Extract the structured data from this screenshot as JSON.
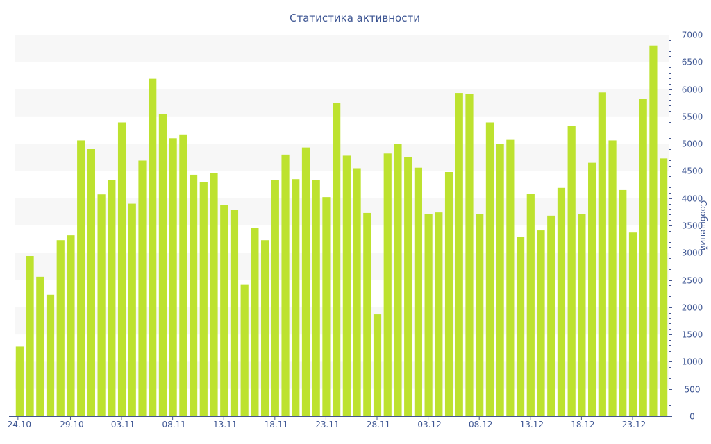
{
  "chart_data": {
    "type": "bar",
    "title": "Статистика активности",
    "xlabel": "",
    "ylabel": "Сообщений",
    "ylim": [
      0,
      7000
    ],
    "y_ticks": [
      0,
      500,
      1000,
      1500,
      2000,
      2500,
      3000,
      3500,
      4000,
      4500,
      5000,
      5500,
      6000,
      6500,
      7000
    ],
    "x_tick_labels": [
      "24.10",
      "29.10",
      "03.11",
      "08.11",
      "13.11",
      "18.11",
      "23.11",
      "28.11",
      "03.12",
      "08.12",
      "13.12",
      "18.12",
      "23.12"
    ],
    "x_tick_every": 5,
    "grid": "alternating horizontal bands",
    "y_axis_position": "right",
    "bar_color": "#bde22f",
    "band_color": "#f7f7f7",
    "axis_color": "#44578f",
    "text_color": "#3e5693",
    "categories": [
      "24.10",
      "25.10",
      "26.10",
      "27.10",
      "28.10",
      "29.10",
      "30.10",
      "31.10",
      "01.11",
      "02.11",
      "03.11",
      "04.11",
      "05.11",
      "06.11",
      "07.11",
      "08.11",
      "09.11",
      "10.11",
      "11.11",
      "12.11",
      "13.11",
      "14.11",
      "15.11",
      "16.11",
      "17.11",
      "18.11",
      "19.11",
      "20.11",
      "21.11",
      "22.11",
      "23.11",
      "24.11",
      "25.11",
      "26.11",
      "27.11",
      "28.11",
      "29.11",
      "30.11",
      "01.12",
      "02.12",
      "03.12",
      "04.12",
      "05.12",
      "06.12",
      "07.12",
      "08.12",
      "09.12",
      "10.12",
      "11.12",
      "12.12",
      "13.12",
      "14.12",
      "15.12",
      "16.12",
      "17.12",
      "18.12",
      "19.12",
      "20.12",
      "21.12",
      "22.12",
      "23.12",
      "24.12",
      "25.12",
      "26.12"
    ],
    "values": [
      1280,
      2940,
      2560,
      2230,
      3230,
      3320,
      5060,
      4900,
      4070,
      4330,
      5390,
      3900,
      4690,
      6190,
      5540,
      5100,
      5170,
      4430,
      4290,
      4460,
      3870,
      3790,
      2410,
      3450,
      3230,
      4330,
      4800,
      4350,
      4930,
      4340,
      4020,
      5740,
      4780,
      4550,
      3730,
      1870,
      4820,
      4990,
      4760,
      4560,
      3710,
      3740,
      4480,
      5930,
      5910,
      3710,
      5390,
      5000,
      5070,
      3290,
      4080,
      3410,
      3680,
      4190,
      5320,
      3710,
      4650,
      5940,
      5060,
      4150,
      3370,
      5820,
      6800,
      4730
    ]
  }
}
